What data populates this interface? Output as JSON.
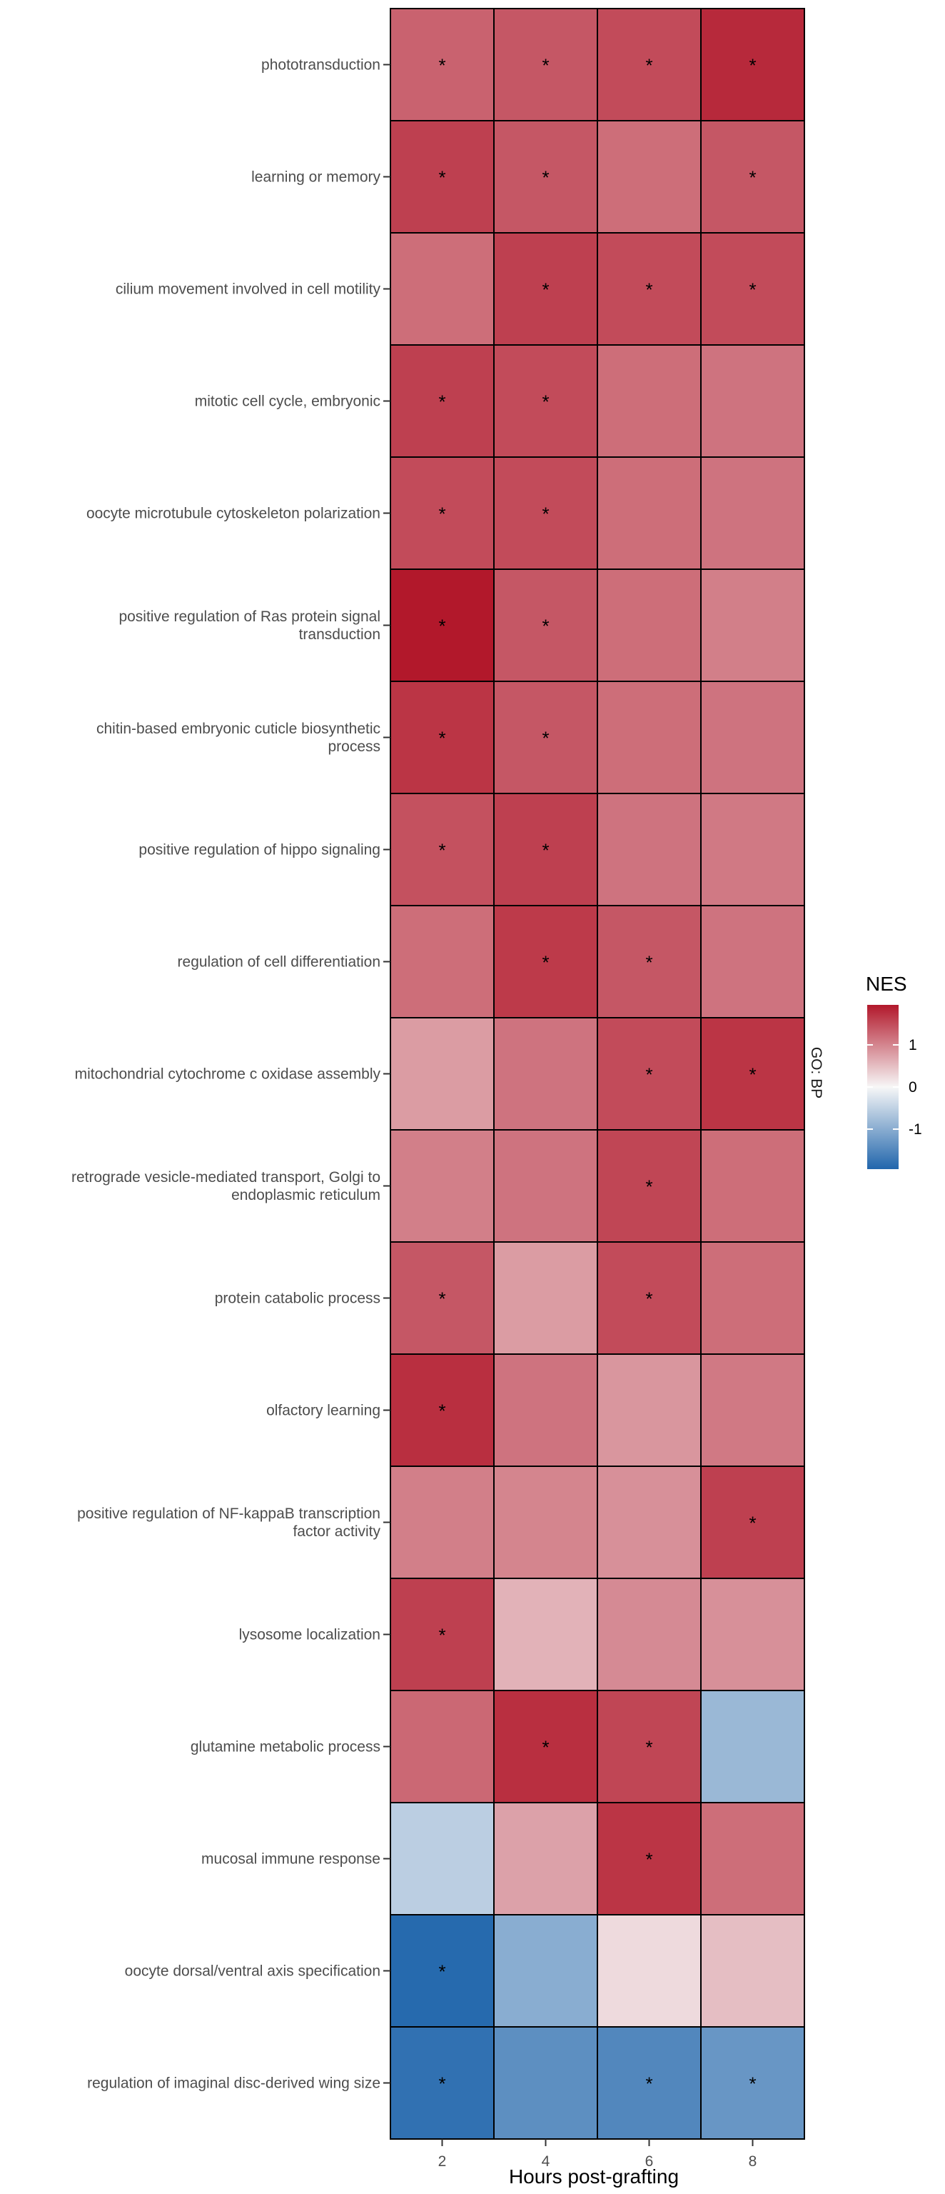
{
  "chart_data": {
    "type": "heatmap",
    "xlabel": "Hours post-grafting",
    "x_categories": [
      "2",
      "4",
      "6",
      "8"
    ],
    "facet_label": "GO: BP",
    "rows": [
      {
        "label": [
          "phototransduction"
        ],
        "values": [
          1.3,
          1.4,
          1.5,
          1.8
        ],
        "signif": [
          true,
          true,
          true,
          true
        ]
      },
      {
        "label": [
          "learning or memory"
        ],
        "values": [
          1.6,
          1.4,
          1.2,
          1.4
        ],
        "signif": [
          true,
          true,
          false,
          true
        ]
      },
      {
        "label": [
          "cilium movement involved in cell motility"
        ],
        "values": [
          1.2,
          1.6,
          1.5,
          1.5
        ],
        "signif": [
          false,
          true,
          true,
          true
        ]
      },
      {
        "label": [
          "mitotic cell cycle, embryonic"
        ],
        "values": [
          1.6,
          1.5,
          1.2,
          1.15
        ],
        "signif": [
          true,
          true,
          false,
          false
        ]
      },
      {
        "label": [
          "oocyte microtubule cytoskeleton polarization"
        ],
        "values": [
          1.5,
          1.5,
          1.2,
          1.15
        ],
        "signif": [
          true,
          true,
          false,
          false
        ]
      },
      {
        "label": [
          "positive regulation of Ras protein signal",
          "transduction"
        ],
        "values": [
          1.95,
          1.4,
          1.2,
          1.05
        ],
        "signif": [
          true,
          true,
          false,
          false
        ]
      },
      {
        "label": [
          "chitin-based embryonic cuticle biosynthetic",
          "process"
        ],
        "values": [
          1.7,
          1.4,
          1.2,
          1.15
        ],
        "signif": [
          true,
          true,
          false,
          false
        ]
      },
      {
        "label": [
          "positive regulation of hippo signaling"
        ],
        "values": [
          1.45,
          1.6,
          1.15,
          1.1
        ],
        "signif": [
          true,
          true,
          false,
          false
        ]
      },
      {
        "label": [
          "regulation of cell differentiation"
        ],
        "values": [
          1.2,
          1.65,
          1.4,
          1.15
        ],
        "signif": [
          false,
          true,
          true,
          false
        ]
      },
      {
        "label": [
          "mitochondrial cytochrome c oxidase assembly"
        ],
        "values": [
          0.8,
          1.15,
          1.5,
          1.7
        ],
        "signif": [
          false,
          false,
          true,
          true
        ]
      },
      {
        "label": [
          "retrograde vesicle-mediated transport, Golgi to",
          "endoplasmic reticulum"
        ],
        "values": [
          1.05,
          1.15,
          1.55,
          1.2
        ],
        "signif": [
          false,
          false,
          true,
          false
        ]
      },
      {
        "label": [
          "protein catabolic process"
        ],
        "values": [
          1.4,
          0.8,
          1.5,
          1.2
        ],
        "signif": [
          true,
          false,
          true,
          false
        ]
      },
      {
        "label": [
          "olfactory learning"
        ],
        "values": [
          1.75,
          1.15,
          0.85,
          1.1
        ],
        "signif": [
          true,
          false,
          false,
          false
        ]
      },
      {
        "label": [
          "positive regulation of NF-kappaB transcription",
          "factor activity"
        ],
        "values": [
          1.05,
          1.0,
          0.9,
          1.6
        ],
        "signif": [
          false,
          false,
          false,
          true
        ]
      },
      {
        "label": [
          "lysosome localization"
        ],
        "values": [
          1.6,
          0.6,
          0.95,
          0.9
        ],
        "signif": [
          true,
          false,
          false,
          false
        ]
      },
      {
        "label": [
          "glutamine metabolic process"
        ],
        "values": [
          1.25,
          1.75,
          1.55,
          -0.85
        ],
        "signif": [
          false,
          true,
          true,
          false
        ]
      },
      {
        "label": [
          "mucosal immune response"
        ],
        "values": [
          -0.55,
          0.75,
          1.7,
          1.2
        ],
        "signif": [
          false,
          false,
          true,
          false
        ]
      },
      {
        "label": [
          "oocyte dorsal/ventral axis specification"
        ],
        "values": [
          -1.9,
          -1.0,
          0.25,
          0.5
        ],
        "signif": [
          true,
          false,
          false,
          false
        ]
      },
      {
        "label": [
          "regulation of imaginal disc-derived wing size"
        ],
        "values": [
          -1.8,
          -1.4,
          -1.5,
          -1.3
        ],
        "signif": [
          true,
          false,
          true,
          true
        ]
      }
    ],
    "signif_marker": "*",
    "legend": {
      "title": "NES",
      "ticks": [
        "1",
        "0",
        "-1"
      ],
      "tick_values": [
        1,
        0,
        -1
      ],
      "range": [
        -1.95,
        1.95
      ]
    },
    "colors": {
      "low": "#2166ac",
      "mid": "#f7f7f7",
      "high": "#b2182b"
    }
  }
}
